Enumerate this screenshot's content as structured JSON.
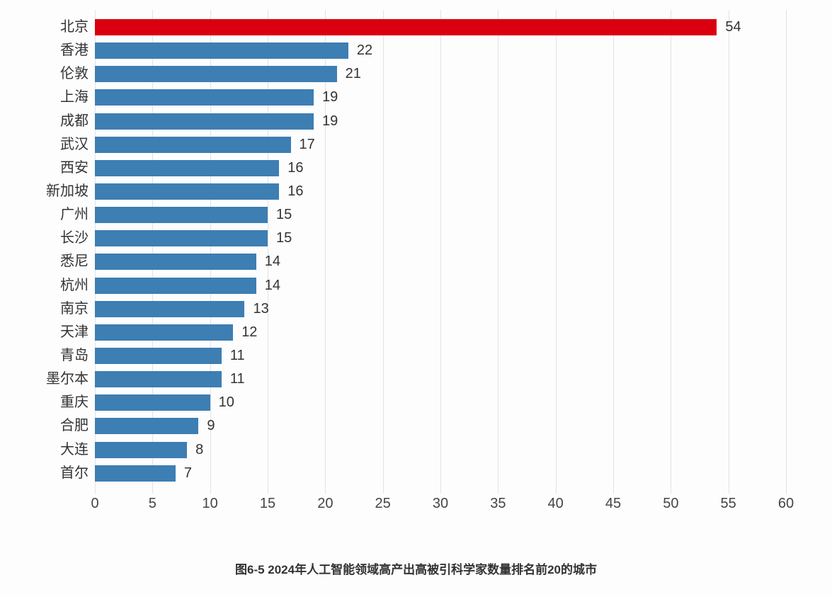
{
  "chart_data": {
    "type": "bar",
    "orientation": "horizontal",
    "title": "",
    "caption": "图6-5 2024年人工智能领域高产出高被引科学家数量排名前20的城市",
    "categories": [
      "北京",
      "香港",
      "伦敦",
      "上海",
      "成都",
      "武汉",
      "西安",
      "新加坡",
      "广州",
      "长沙",
      "悉尼",
      "杭州",
      "南京",
      "天津",
      "青岛",
      "墨尔本",
      "重庆",
      "合肥",
      "大连",
      "首尔"
    ],
    "values": [
      54,
      22,
      21,
      19,
      19,
      17,
      16,
      16,
      15,
      15,
      14,
      14,
      13,
      12,
      11,
      11,
      10,
      9,
      8,
      7
    ],
    "highlight_index": 0,
    "highlight_color": "#da0010",
    "bar_color": "#3d7eb3",
    "xlim": [
      0,
      60
    ],
    "x_ticks": [
      0,
      5,
      10,
      15,
      20,
      25,
      30,
      35,
      40,
      45,
      50,
      55,
      60
    ],
    "grid": "vertical",
    "value_labels": true,
    "legend": "none",
    "xlabel": "",
    "ylabel": "",
    "text_color": "#333333",
    "grid_color": "#e2e2e2"
  }
}
